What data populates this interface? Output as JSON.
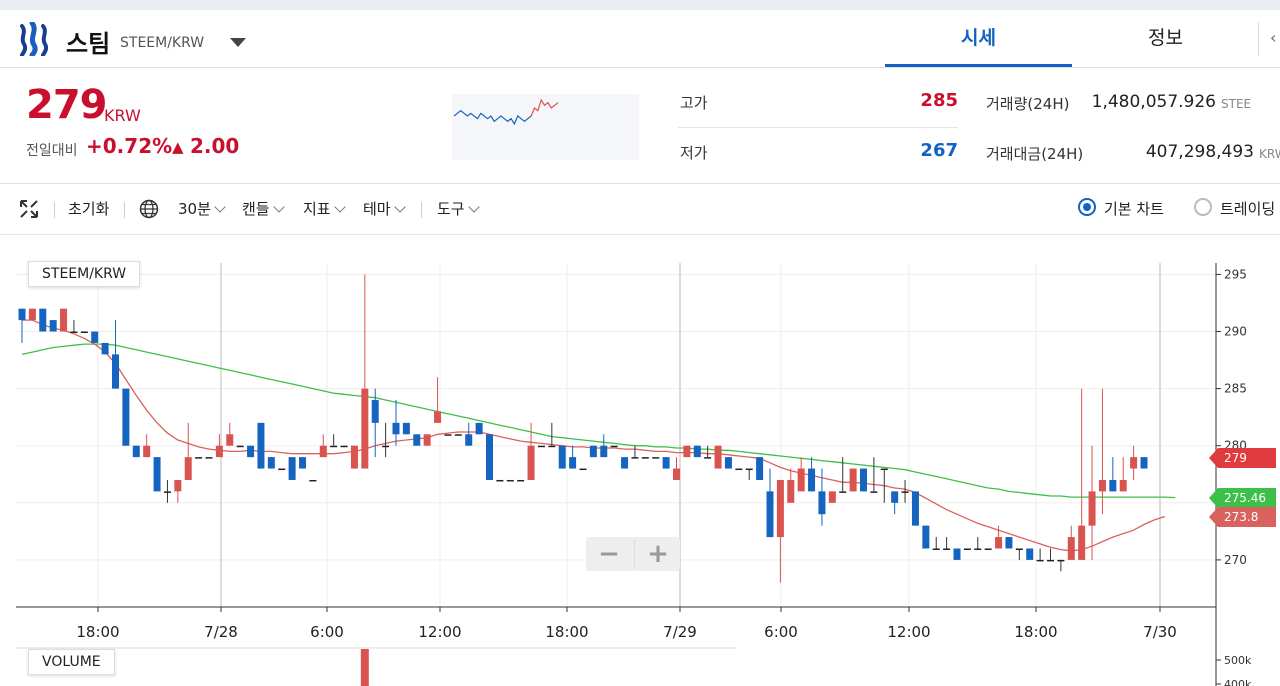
{
  "header": {
    "coin_name": "스팀",
    "pair": "STEEM/KRW",
    "tabs": [
      {
        "label": "시세",
        "active": true
      },
      {
        "label": "정보",
        "active": false
      }
    ]
  },
  "summary": {
    "price": "279",
    "unit": "KRW",
    "change_label": "전일대비",
    "change_rate": "+0.72%",
    "change_arrow": "▲",
    "change_amount": "2.00",
    "high_label": "고가",
    "high_value": "285",
    "low_label": "저가",
    "low_value": "267",
    "volume_label": "거래량(24H)",
    "volume_value": "1,480,057.926",
    "volume_unit": "STEE",
    "amount_label": "거래대금(24H)",
    "amount_value": "407,298,493",
    "amount_unit": "KRW",
    "mini_series": [
      279,
      280,
      281,
      280,
      279,
      280,
      279,
      278,
      280,
      279,
      278,
      279,
      277,
      278,
      279,
      278,
      277,
      278,
      276,
      279,
      278,
      277,
      278,
      279,
      282,
      281,
      285,
      283,
      284,
      282,
      283,
      284
    ]
  },
  "toolbar": {
    "reset": "초기화",
    "interval": "30분",
    "candle": "캔들",
    "indicator": "지표",
    "theme": "테마",
    "tools": "도구",
    "basic_chart": "기본 차트",
    "trading_chart": "트레이딩"
  },
  "chart": {
    "legend": "STEEM/KRW",
    "volume_legend": "VOLUME",
    "zoom_out": "−",
    "zoom_in": "+",
    "last_price_tag": "279",
    "ma_long_tag": "275.46",
    "ma_short_tag": "273.8",
    "volume_ticks": [
      "500k",
      "400k"
    ]
  },
  "colors": {
    "up": "#d9534f",
    "down": "#1565c0",
    "ma_short": "#d9625e",
    "ma_long": "#3cc04a",
    "accent": "#1261c4"
  },
  "chart_data": {
    "type": "candlestick",
    "xlabel": "",
    "ylabel": "",
    "ylim": [
      265,
      296
    ],
    "y_ticks": [
      270,
      275,
      280,
      285,
      290,
      295
    ],
    "x_tick_labels": [
      "18:00",
      "7/28",
      "6:00",
      "12:00",
      "18:00",
      "7/29",
      "6:00",
      "12:00",
      "18:00",
      "7/30"
    ],
    "candles": [
      [
        292,
        291,
        292,
        289
      ],
      [
        291,
        292,
        292,
        291
      ],
      [
        292,
        290,
        292,
        290
      ],
      [
        291,
        290,
        291,
        290
      ],
      [
        290,
        292,
        292,
        290
      ],
      [
        290,
        290,
        291,
        290
      ],
      [
        290,
        290,
        290,
        290
      ],
      [
        290,
        289,
        290,
        289
      ],
      [
        289,
        288,
        289,
        288
      ],
      [
        288,
        285,
        291,
        285
      ],
      [
        285,
        280,
        285,
        280
      ],
      [
        280,
        279,
        280,
        279
      ],
      [
        279,
        280,
        281,
        279
      ],
      [
        279,
        276,
        279,
        276
      ],
      [
        276,
        276,
        277,
        275
      ],
      [
        276,
        277,
        277,
        275
      ],
      [
        277,
        279,
        282,
        279
      ],
      [
        279,
        279,
        279,
        279
      ],
      [
        279,
        279,
        279,
        279
      ],
      [
        279,
        280,
        281,
        279
      ],
      [
        280,
        281,
        282,
        280
      ],
      [
        280,
        280,
        280,
        280
      ],
      [
        280,
        279,
        280,
        279
      ],
      [
        282,
        278,
        282,
        278
      ],
      [
        279,
        278,
        279,
        278
      ],
      [
        278,
        278,
        278,
        278
      ],
      [
        279,
        277,
        277,
        278
      ],
      [
        279,
        278,
        279,
        278
      ],
      [
        277,
        277,
        277,
        277
      ],
      [
        279,
        280,
        281,
        279
      ],
      [
        280,
        280,
        281,
        280
      ],
      [
        280,
        280,
        280,
        280
      ],
      [
        278,
        280,
        280,
        278
      ],
      [
        278,
        285,
        295,
        278
      ],
      [
        284,
        282,
        285,
        279
      ],
      [
        280,
        280,
        282,
        279
      ],
      [
        282,
        281,
        284,
        280
      ],
      [
        282,
        281,
        282,
        281
      ],
      [
        281,
        280,
        281,
        280
      ],
      [
        280,
        281,
        281,
        280
      ],
      [
        282,
        283,
        286,
        282
      ],
      [
        281,
        281,
        281,
        281
      ],
      [
        281,
        281,
        281,
        281
      ],
      [
        281,
        280,
        282,
        280
      ],
      [
        282,
        281,
        282,
        281
      ],
      [
        281,
        277,
        281,
        277
      ],
      [
        277,
        277,
        277,
        277
      ],
      [
        277,
        277,
        277,
        277
      ],
      [
        277,
        277,
        277,
        277
      ],
      [
        277,
        280,
        282,
        277
      ],
      [
        280,
        280,
        280,
        280
      ],
      [
        280,
        280,
        282,
        280
      ],
      [
        280,
        278,
        280,
        278
      ],
      [
        279,
        278,
        280,
        278
      ],
      [
        278,
        278,
        278,
        278
      ],
      [
        280,
        279,
        280,
        279
      ],
      [
        280,
        279,
        281,
        279
      ],
      [
        280,
        280,
        280,
        280
      ],
      [
        279,
        278,
        279,
        278
      ],
      [
        279,
        279,
        280,
        279
      ],
      [
        279,
        279,
        279,
        279
      ],
      [
        279,
        279,
        279,
        279
      ],
      [
        279,
        278,
        279,
        278
      ],
      [
        277,
        278,
        279,
        277
      ],
      [
        279,
        280,
        280,
        279
      ],
      [
        280,
        279,
        280,
        279
      ],
      [
        279,
        279,
        280,
        279
      ],
      [
        278,
        280,
        280,
        278
      ],
      [
        279,
        278,
        279,
        278
      ],
      [
        278,
        278,
        278,
        278
      ],
      [
        278,
        278,
        278,
        277
      ],
      [
        279,
        277,
        279,
        277
      ],
      [
        276,
        272,
        278,
        272
      ],
      [
        272,
        277,
        277,
        268
      ],
      [
        275,
        277,
        278,
        275
      ],
      [
        276,
        278,
        279,
        276
      ],
      [
        278,
        276,
        279,
        276
      ],
      [
        276,
        274,
        278,
        273
      ],
      [
        275,
        276,
        276,
        275
      ],
      [
        276,
        276,
        279,
        276
      ],
      [
        276,
        278,
        278,
        276
      ],
      [
        278,
        276,
        278,
        276
      ],
      [
        276,
        276,
        279,
        276
      ],
      [
        278,
        278,
        278,
        275
      ],
      [
        276,
        275,
        276,
        274
      ],
      [
        276,
        276,
        277,
        275
      ],
      [
        276,
        273,
        276,
        273
      ],
      [
        273,
        271,
        273,
        271
      ],
      [
        271,
        271,
        272,
        271
      ],
      [
        271,
        271,
        272,
        271
      ],
      [
        271,
        270,
        271,
        270
      ],
      [
        271,
        271,
        271,
        271
      ],
      [
        271,
        271,
        272,
        271
      ],
      [
        271,
        271,
        271,
        271
      ],
      [
        271,
        272,
        273,
        271
      ],
      [
        272,
        271,
        272,
        271
      ],
      [
        271,
        271,
        271,
        270
      ],
      [
        271,
        270,
        271,
        270
      ],
      [
        270,
        270,
        271,
        270
      ],
      [
        270,
        270,
        271,
        270
      ],
      [
        270,
        270,
        270,
        269
      ],
      [
        270,
        272,
        273,
        270
      ],
      [
        270,
        273,
        285,
        270
      ],
      [
        273,
        276,
        280,
        270
      ],
      [
        276,
        277,
        285,
        274
      ],
      [
        277,
        276,
        279,
        276
      ],
      [
        276,
        277,
        279,
        276
      ],
      [
        278,
        279,
        280,
        277
      ],
      [
        279,
        278,
        279,
        278
      ]
    ],
    "ma_short": [
      291,
      291,
      290.6,
      290.3,
      290.1,
      289.8,
      289.4,
      288.9,
      288.2,
      287.2,
      285.8,
      284.4,
      283.1,
      282,
      281.1,
      280.5,
      280.2,
      279.9,
      279.7,
      279.6,
      279.5,
      279.5,
      279.6,
      279.5,
      279.5,
      279.4,
      279.3,
      279.3,
      279.3,
      279.3,
      279.3,
      279.4,
      279.5,
      279.7,
      280,
      280.2,
      280.4,
      280.5,
      280.6,
      280.7,
      281,
      281.1,
      281.2,
      281.2,
      281.2,
      281,
      280.8,
      280.6,
      280.4,
      280.3,
      280.2,
      280.1,
      280,
      279.9,
      279.9,
      279.8,
      279.8,
      279.8,
      279.7,
      279.7,
      279.6,
      279.5,
      279.5,
      279.4,
      279.4,
      279.4,
      279.3,
      279.3,
      279.2,
      279.1,
      279,
      278.9,
      278.5,
      278.1,
      277.8,
      277.6,
      277.4,
      277.2,
      277,
      276.8,
      276.8,
      276.7,
      276.6,
      276.5,
      276.3,
      276.2,
      275.9,
      275.4,
      274.9,
      274.4,
      274,
      273.6,
      273.2,
      272.9,
      272.6,
      272.3,
      272,
      271.7,
      271.4,
      271.1,
      270.9,
      270.8,
      270.9,
      271.2,
      271.6,
      272,
      272.3,
      272.6,
      273.1,
      273.5,
      273.8
    ],
    "ma_long": [
      288,
      288.2,
      288.4,
      288.6,
      288.7,
      288.8,
      288.9,
      288.9,
      288.9,
      288.8,
      288.6,
      288.4,
      288.2,
      288,
      287.8,
      287.6,
      287.4,
      287.2,
      287,
      286.8,
      286.6,
      286.4,
      286.2,
      286,
      285.8,
      285.6,
      285.4,
      285.2,
      285,
      284.8,
      284.6,
      284.5,
      284.4,
      284.3,
      284.2,
      284,
      283.8,
      283.6,
      283.4,
      283.2,
      283,
      282.8,
      282.6,
      282.4,
      282.2,
      282,
      281.8,
      281.6,
      281.4,
      281.2,
      281,
      280.8,
      280.7,
      280.6,
      280.5,
      280.4,
      280.3,
      280.2,
      280.1,
      280,
      280,
      279.9,
      279.9,
      279.8,
      279.8,
      279.7,
      279.7,
      279.6,
      279.6,
      279.5,
      279.4,
      279.3,
      279.2,
      279.1,
      279,
      278.9,
      278.8,
      278.7,
      278.6,
      278.5,
      278.4,
      278.3,
      278.2,
      278.1,
      278,
      277.9,
      277.7,
      277.5,
      277.3,
      277.1,
      276.9,
      276.7,
      276.5,
      276.3,
      276.2,
      276,
      275.9,
      275.8,
      275.7,
      275.6,
      275.6,
      275.5,
      275.5,
      275.5,
      275.5,
      275.5,
      275.5,
      275.5,
      275.5,
      275.5,
      275.5,
      275.46
    ]
  }
}
